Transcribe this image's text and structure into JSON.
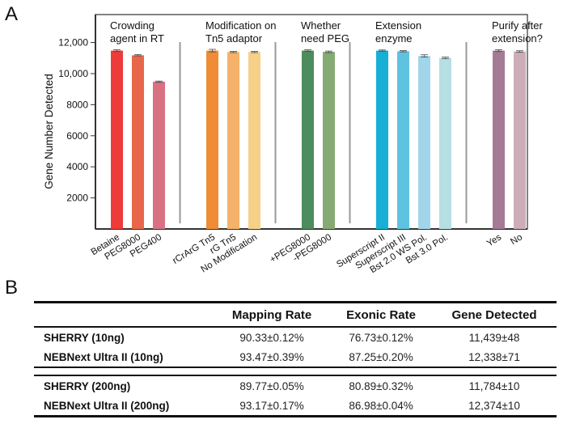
{
  "panels": {
    "a_label": "A",
    "b_label": "B"
  },
  "chart_data": {
    "type": "bar",
    "title": "",
    "xlabel": "",
    "ylabel": "Gene Number Detected",
    "ylim": [
      0,
      13800
    ],
    "yticks": [
      2000,
      4000,
      6000,
      8000,
      10000,
      12000
    ],
    "ytick_labels": [
      "2000",
      "4000",
      "6000",
      "8000",
      "10,000",
      "12,000"
    ],
    "grid": false,
    "legend": "none",
    "groups": [
      {
        "title_lines": [
          "Crowding",
          "agent in RT"
        ],
        "bars": [
          {
            "label": "Betaine",
            "value": 11480,
            "error": 60,
            "color": "#ee3a39"
          },
          {
            "label": "PEG8000",
            "value": 11180,
            "error": 40,
            "color": "#e8674a"
          },
          {
            "label": "PEG400",
            "value": 9480,
            "error": 40,
            "color": "#d87282"
          }
        ]
      },
      {
        "title_lines": [
          "Modification on",
          "Tn5 adaptor"
        ],
        "bars": [
          {
            "label": "rCrArG Tn5",
            "value": 11480,
            "error": 80,
            "color": "#ef8c35"
          },
          {
            "label": "rG Tn5",
            "value": 11390,
            "error": 40,
            "color": "#f4b26a"
          },
          {
            "label": "No Modification",
            "value": 11390,
            "error": 40,
            "color": "#f6d088"
          }
        ]
      },
      {
        "title_lines": [
          "Whether",
          "need PEG"
        ],
        "bars": [
          {
            "label": "+PEG8000",
            "value": 11480,
            "error": 50,
            "color": "#4d8c5c"
          },
          {
            "label": "-PEG8000",
            "value": 11400,
            "error": 50,
            "color": "#86aa73"
          }
        ]
      },
      {
        "title_lines": [
          "Extension",
          "enzyme"
        ],
        "bars": [
          {
            "label": "Superscript II",
            "value": 11480,
            "error": 40,
            "color": "#17afd6"
          },
          {
            "label": "Superscript III",
            "value": 11440,
            "error": 40,
            "color": "#5fc2e1"
          },
          {
            "label": "Bst 2.0 WS Pol.",
            "value": 11140,
            "error": 70,
            "color": "#a1d5e9"
          },
          {
            "label": "Bst 3.0 Pol.",
            "value": 11010,
            "error": 50,
            "color": "#b5dfe2"
          }
        ]
      },
      {
        "title_lines": [
          "Purify after",
          "extension?"
        ],
        "bars": [
          {
            "label": "Yes",
            "value": 11480,
            "error": 60,
            "color": "#a47a94"
          },
          {
            "label": "No",
            "value": 11420,
            "error": 50,
            "color": "#cdaeb8"
          }
        ]
      }
    ]
  },
  "table": {
    "headers": [
      "",
      "Mapping Rate",
      "Exonic Rate",
      "Gene Detected"
    ],
    "groups": [
      [
        {
          "name": "SHERRY (10ng)",
          "mapping": "90.33±0.12%",
          "exonic": "76.73±0.12%",
          "genes": "11,439±48"
        },
        {
          "name": "NEBNext Ultra II (10ng)",
          "mapping": "93.47±0.39%",
          "exonic": "87.25±0.20%",
          "genes": "12,338±71"
        }
      ],
      [
        {
          "name": "SHERRY (200ng)",
          "mapping": "89.77±0.05%",
          "exonic": "80.89±0.32%",
          "genes": "11,784±10"
        },
        {
          "name": "NEBNext Ultra II (200ng)",
          "mapping": "93.17±0.17%",
          "exonic": "86.98±0.04%",
          "genes": "12,374±10"
        }
      ]
    ]
  }
}
